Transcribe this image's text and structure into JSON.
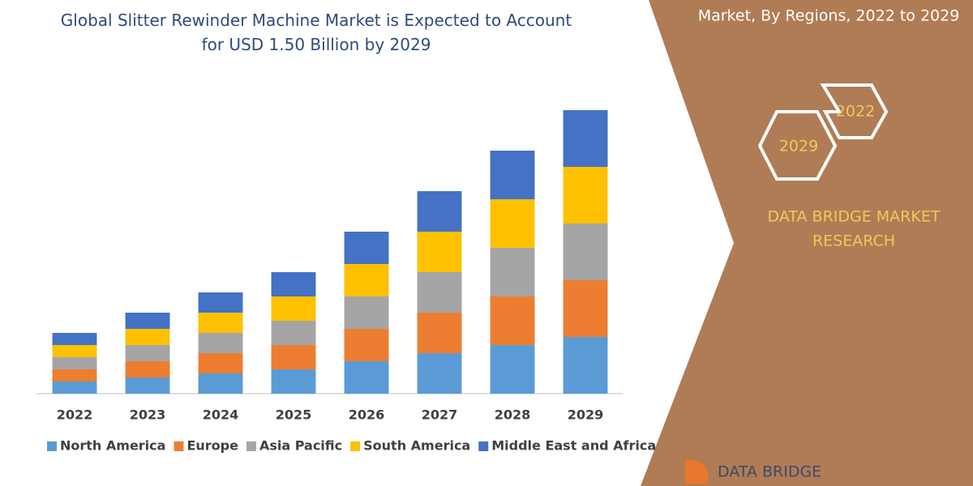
{
  "chart_data": {
    "type": "bar",
    "stacked": true,
    "title": "Global Slitter Rewinder Machine Market is Expected to Account for USD 1.50 Billion by 2029",
    "categories": [
      "2022",
      "2023",
      "2024",
      "2025",
      "2026",
      "2027",
      "2028",
      "2029"
    ],
    "series": [
      {
        "name": "North America",
        "color": "#5b9bd5",
        "values": [
          1.5,
          2,
          2.5,
          3,
          4,
          5,
          6,
          7
        ]
      },
      {
        "name": "Europe",
        "color": "#ed7d31",
        "values": [
          1.5,
          2,
          2.5,
          3,
          4,
          5,
          6,
          7
        ]
      },
      {
        "name": "Asia Pacific",
        "color": "#a5a5a5",
        "values": [
          1.5,
          2,
          2.5,
          3,
          4,
          5,
          6,
          7
        ]
      },
      {
        "name": "South America",
        "color": "#ffc000",
        "values": [
          1.5,
          2,
          2.5,
          3,
          4,
          5,
          6,
          7
        ]
      },
      {
        "name": "Middle East and Africa",
        "color": "#4472c4",
        "values": [
          1.5,
          2,
          2.5,
          3,
          4,
          5,
          6,
          7
        ]
      }
    ],
    "ylim": [
      0,
      36
    ],
    "grid": false,
    "legend": "bottom"
  },
  "panel": {
    "heading": "Market, By Regions, 2022 to 2029",
    "hex_labels": [
      "2022",
      "2029"
    ],
    "brand": [
      "DATA BRIDGE MARKET",
      "RESEARCH"
    ],
    "logo": "DATA BRIDGE"
  }
}
